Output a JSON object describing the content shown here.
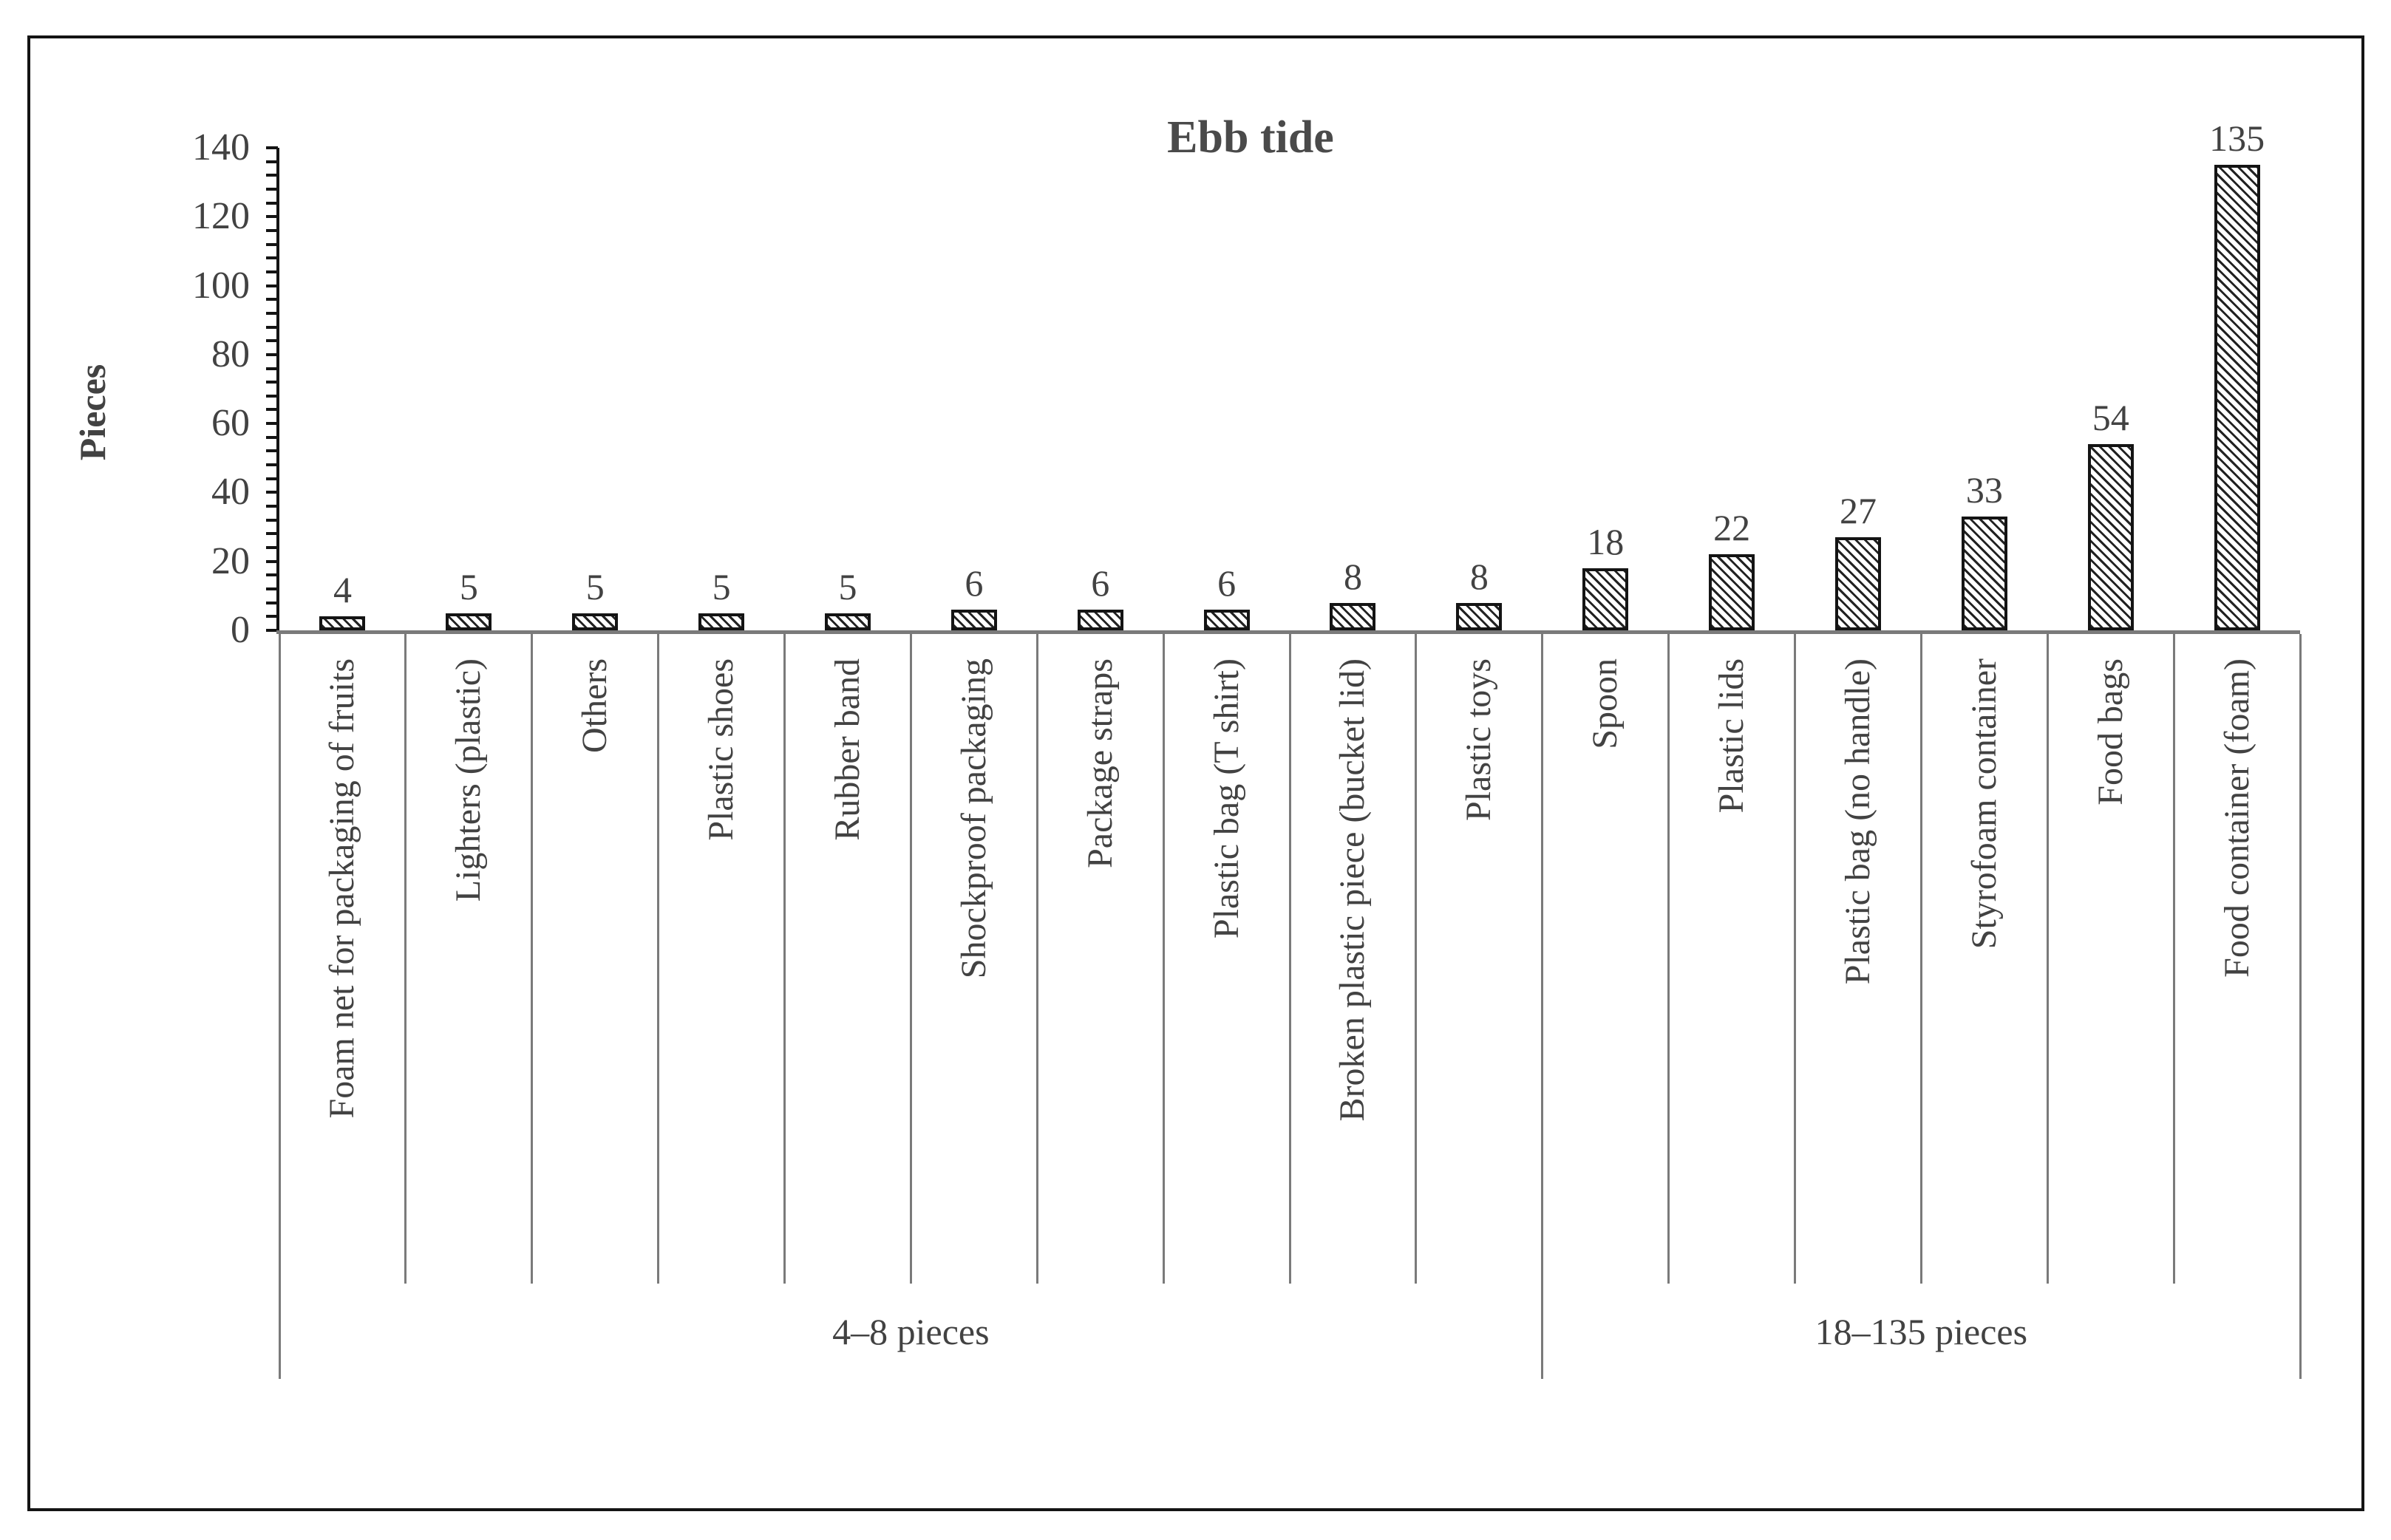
{
  "chart_data": {
    "type": "bar",
    "title": "Ebb tide",
    "ylabel": "Pieces",
    "xlabel": "",
    "categories": [
      "Foam net for packaging of fruits",
      "Lighters (plastic)",
      "Others",
      "Plastic shoes",
      "Rubber band",
      "Shockproof packaging",
      "Package straps",
      "Plastic bag (T shirt)",
      "Broken plastic piece (bucket lid)",
      "Plastic toys",
      "Spoon",
      "Plastic lids",
      "Plastic bag (no handle)",
      "Styrofoam container",
      "Food bags",
      "Food container (foam)"
    ],
    "values": [
      4,
      5,
      5,
      5,
      5,
      6,
      6,
      6,
      8,
      8,
      18,
      22,
      27,
      33,
      54,
      135
    ],
    "data_labels_shown": true,
    "ylim": [
      0,
      140
    ],
    "yticks": [
      "0",
      "20",
      "40",
      "60",
      "80",
      "100",
      "120",
      "140"
    ],
    "ytick_values": [
      0,
      20,
      40,
      60,
      80,
      100,
      120,
      140
    ],
    "minor_tick_unit": 4,
    "grid": false,
    "legend": "none",
    "bar_style": "diagonal-hatch-downward",
    "groups": [
      {
        "label": "4–8 pieces",
        "from_index": 0,
        "to_index": 9
      },
      {
        "label": "18–135 pieces",
        "from_index": 10,
        "to_index": 15
      }
    ],
    "colors": {
      "text": "#424242",
      "axis": "#141414",
      "bar_border": "#141414",
      "bar_fill": "#ffffff",
      "hatch": "#0f0f0f",
      "gridline_gray": "#7a7a7a",
      "frame_border": "#141414",
      "background": "#ffffff"
    }
  }
}
